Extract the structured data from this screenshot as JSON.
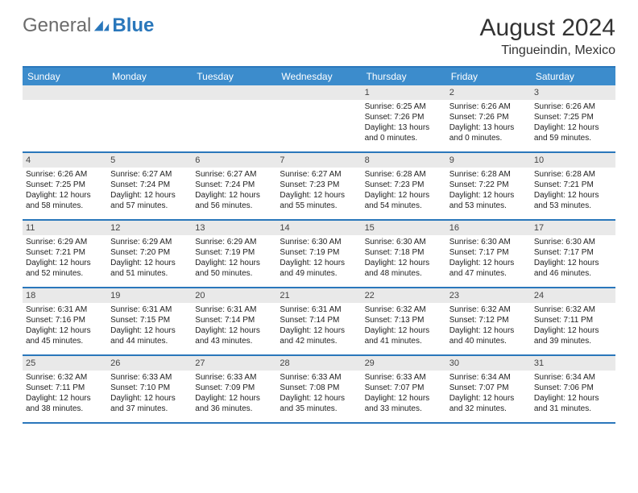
{
  "logo": {
    "general": "General",
    "blue": "Blue"
  },
  "title": "August 2024",
  "location": "Tingueindin, Mexico",
  "colors": {
    "accent": "#2a77bb",
    "header_bg": "#3c8ccc",
    "num_bg": "#e9e9e9"
  },
  "day_headers": [
    "Sunday",
    "Monday",
    "Tuesday",
    "Wednesday",
    "Thursday",
    "Friday",
    "Saturday"
  ],
  "weeks": [
    [
      {
        "n": "",
        "empty": true
      },
      {
        "n": "",
        "empty": true
      },
      {
        "n": "",
        "empty": true
      },
      {
        "n": "",
        "empty": true
      },
      {
        "n": "1",
        "sunrise": "Sunrise: 6:25 AM",
        "sunset": "Sunset: 7:26 PM",
        "daylight": "Daylight: 13 hours and 0 minutes."
      },
      {
        "n": "2",
        "sunrise": "Sunrise: 6:26 AM",
        "sunset": "Sunset: 7:26 PM",
        "daylight": "Daylight: 13 hours and 0 minutes."
      },
      {
        "n": "3",
        "sunrise": "Sunrise: 6:26 AM",
        "sunset": "Sunset: 7:25 PM",
        "daylight": "Daylight: 12 hours and 59 minutes."
      }
    ],
    [
      {
        "n": "4",
        "sunrise": "Sunrise: 6:26 AM",
        "sunset": "Sunset: 7:25 PM",
        "daylight": "Daylight: 12 hours and 58 minutes."
      },
      {
        "n": "5",
        "sunrise": "Sunrise: 6:27 AM",
        "sunset": "Sunset: 7:24 PM",
        "daylight": "Daylight: 12 hours and 57 minutes."
      },
      {
        "n": "6",
        "sunrise": "Sunrise: 6:27 AM",
        "sunset": "Sunset: 7:24 PM",
        "daylight": "Daylight: 12 hours and 56 minutes."
      },
      {
        "n": "7",
        "sunrise": "Sunrise: 6:27 AM",
        "sunset": "Sunset: 7:23 PM",
        "daylight": "Daylight: 12 hours and 55 minutes."
      },
      {
        "n": "8",
        "sunrise": "Sunrise: 6:28 AM",
        "sunset": "Sunset: 7:23 PM",
        "daylight": "Daylight: 12 hours and 54 minutes."
      },
      {
        "n": "9",
        "sunrise": "Sunrise: 6:28 AM",
        "sunset": "Sunset: 7:22 PM",
        "daylight": "Daylight: 12 hours and 53 minutes."
      },
      {
        "n": "10",
        "sunrise": "Sunrise: 6:28 AM",
        "sunset": "Sunset: 7:21 PM",
        "daylight": "Daylight: 12 hours and 53 minutes."
      }
    ],
    [
      {
        "n": "11",
        "sunrise": "Sunrise: 6:29 AM",
        "sunset": "Sunset: 7:21 PM",
        "daylight": "Daylight: 12 hours and 52 minutes."
      },
      {
        "n": "12",
        "sunrise": "Sunrise: 6:29 AM",
        "sunset": "Sunset: 7:20 PM",
        "daylight": "Daylight: 12 hours and 51 minutes."
      },
      {
        "n": "13",
        "sunrise": "Sunrise: 6:29 AM",
        "sunset": "Sunset: 7:19 PM",
        "daylight": "Daylight: 12 hours and 50 minutes."
      },
      {
        "n": "14",
        "sunrise": "Sunrise: 6:30 AM",
        "sunset": "Sunset: 7:19 PM",
        "daylight": "Daylight: 12 hours and 49 minutes."
      },
      {
        "n": "15",
        "sunrise": "Sunrise: 6:30 AM",
        "sunset": "Sunset: 7:18 PM",
        "daylight": "Daylight: 12 hours and 48 minutes."
      },
      {
        "n": "16",
        "sunrise": "Sunrise: 6:30 AM",
        "sunset": "Sunset: 7:17 PM",
        "daylight": "Daylight: 12 hours and 47 minutes."
      },
      {
        "n": "17",
        "sunrise": "Sunrise: 6:30 AM",
        "sunset": "Sunset: 7:17 PM",
        "daylight": "Daylight: 12 hours and 46 minutes."
      }
    ],
    [
      {
        "n": "18",
        "sunrise": "Sunrise: 6:31 AM",
        "sunset": "Sunset: 7:16 PM",
        "daylight": "Daylight: 12 hours and 45 minutes."
      },
      {
        "n": "19",
        "sunrise": "Sunrise: 6:31 AM",
        "sunset": "Sunset: 7:15 PM",
        "daylight": "Daylight: 12 hours and 44 minutes."
      },
      {
        "n": "20",
        "sunrise": "Sunrise: 6:31 AM",
        "sunset": "Sunset: 7:14 PM",
        "daylight": "Daylight: 12 hours and 43 minutes."
      },
      {
        "n": "21",
        "sunrise": "Sunrise: 6:31 AM",
        "sunset": "Sunset: 7:14 PM",
        "daylight": "Daylight: 12 hours and 42 minutes."
      },
      {
        "n": "22",
        "sunrise": "Sunrise: 6:32 AM",
        "sunset": "Sunset: 7:13 PM",
        "daylight": "Daylight: 12 hours and 41 minutes."
      },
      {
        "n": "23",
        "sunrise": "Sunrise: 6:32 AM",
        "sunset": "Sunset: 7:12 PM",
        "daylight": "Daylight: 12 hours and 40 minutes."
      },
      {
        "n": "24",
        "sunrise": "Sunrise: 6:32 AM",
        "sunset": "Sunset: 7:11 PM",
        "daylight": "Daylight: 12 hours and 39 minutes."
      }
    ],
    [
      {
        "n": "25",
        "sunrise": "Sunrise: 6:32 AM",
        "sunset": "Sunset: 7:11 PM",
        "daylight": "Daylight: 12 hours and 38 minutes."
      },
      {
        "n": "26",
        "sunrise": "Sunrise: 6:33 AM",
        "sunset": "Sunset: 7:10 PM",
        "daylight": "Daylight: 12 hours and 37 minutes."
      },
      {
        "n": "27",
        "sunrise": "Sunrise: 6:33 AM",
        "sunset": "Sunset: 7:09 PM",
        "daylight": "Daylight: 12 hours and 36 minutes."
      },
      {
        "n": "28",
        "sunrise": "Sunrise: 6:33 AM",
        "sunset": "Sunset: 7:08 PM",
        "daylight": "Daylight: 12 hours and 35 minutes."
      },
      {
        "n": "29",
        "sunrise": "Sunrise: 6:33 AM",
        "sunset": "Sunset: 7:07 PM",
        "daylight": "Daylight: 12 hours and 33 minutes."
      },
      {
        "n": "30",
        "sunrise": "Sunrise: 6:34 AM",
        "sunset": "Sunset: 7:07 PM",
        "daylight": "Daylight: 12 hours and 32 minutes."
      },
      {
        "n": "31",
        "sunrise": "Sunrise: 6:34 AM",
        "sunset": "Sunset: 7:06 PM",
        "daylight": "Daylight: 12 hours and 31 minutes."
      }
    ]
  ]
}
